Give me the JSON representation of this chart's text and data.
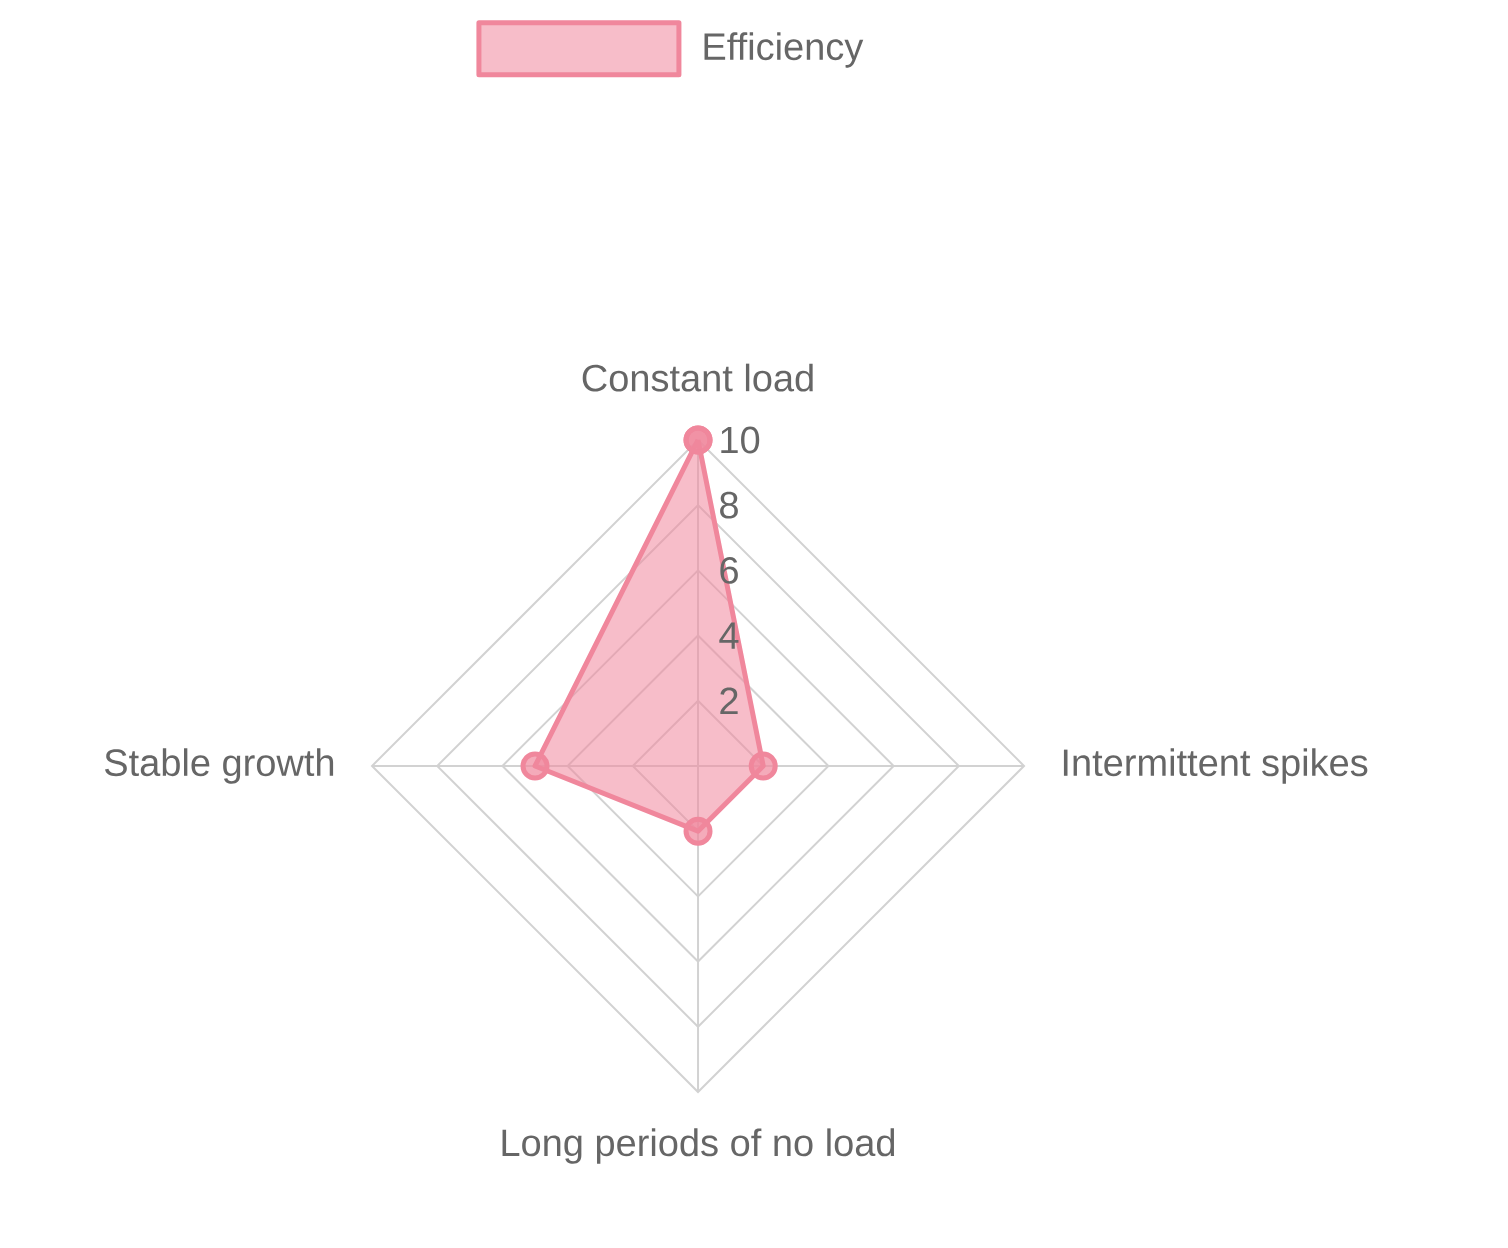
{
  "chart_data": {
    "type": "radar",
    "categories": [
      "Constant load",
      "Intermittent spikes",
      "Long periods of no load",
      "Stable growth"
    ],
    "series": [
      {
        "name": "Efficiency",
        "color": "#f0879c",
        "values": [
          10,
          2,
          2,
          5
        ]
      }
    ],
    "ylim": [
      0,
      10
    ],
    "yticks": [
      2,
      4,
      6,
      8,
      10
    ],
    "grid": true,
    "legend": "top",
    "marker": "circle"
  }
}
